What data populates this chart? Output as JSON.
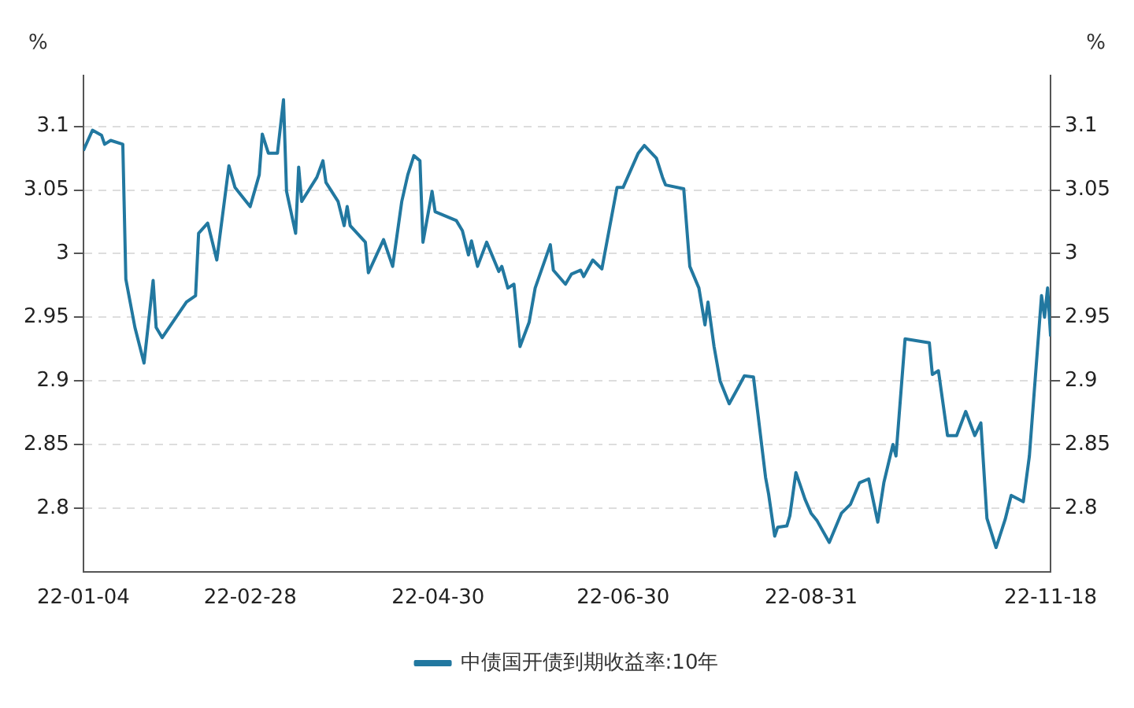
{
  "chart_data": {
    "type": "line",
    "ylabel": "%",
    "y2label": "%",
    "x": [
      "--01-04",
      "--01-07",
      "--01-10",
      "--01-11",
      "--01-13",
      "--01-17",
      "--01-18",
      "--01-21",
      "--01-24",
      "--01-27",
      "--01-28",
      "--01-30",
      "--02-07",
      "--02-10",
      "--02-11",
      "--02-14",
      "--02-17",
      "--02-21",
      "--02-23",
      "--02-28",
      "--03-02",
      "--03-03",
      "--03-05",
      "--03-08",
      "--03-10",
      "--03-11",
      "--03-14",
      "--03-15",
      "--03-16",
      "--03-21",
      "--03-23",
      "--03-24",
      "--03-28",
      "--03-30",
      "--03-31",
      "--04-01",
      "--04-06",
      "--04-07",
      "--04-12",
      "--04-15",
      "--04-18",
      "--04-20",
      "--04-22",
      "--04-24",
      "--04-25",
      "--04-28",
      "--04-29",
      "--05-06",
      "--05-08",
      "--05-10",
      "--05-11",
      "--05-13",
      "--05-16",
      "--05-20",
      "--05-21",
      "--05-23",
      "--05-25",
      "--05-27",
      "--05-30",
      "--06-01",
      "--06-06",
      "--06-07",
      "--06-11",
      "--06-13",
      "--06-16",
      "--06-17",
      "--06-20",
      "--06-23",
      "--06-28",
      "--06-30",
      "--07-05",
      "--07-07",
      "--07-11",
      "--07-13",
      "--07-14",
      "--07-20",
      "--07-22",
      "--07-25",
      "--07-27",
      "--07-28",
      "--07-30",
      "--08-01",
      "--08-04",
      "--08-07",
      "--08-09",
      "--08-12",
      "--08-16",
      "--08-17",
      "--08-19",
      "--08-20",
      "--08-23",
      "--08-24",
      "--08-26",
      "--08-29",
      "--08-31",
      "--09-02",
      "--09-06",
      "--09-10",
      "--09-13",
      "--09-16",
      "--09-19",
      "--09-22",
      "--09-24",
      "--09-27",
      "--09-28",
      "--10-01",
      "--10-09",
      "--10-10",
      "--10-12",
      "--10-13",
      "--10-15",
      "--10-18",
      "--10-21",
      "--10-24",
      "--10-26",
      "--10-28",
      "--10-31",
      "--11-03",
      "--11-05",
      "--11-09",
      "--11-11",
      "--11-15",
      "--11-16",
      "--11-17",
      "--11-18"
    ],
    "series": [
      {
        "name": "中债国开债到期收益率:10年",
        "color": "#2278a0",
        "values": [
          3.081,
          3.097,
          3.093,
          3.086,
          3.089,
          3.086,
          2.98,
          2.942,
          2.914,
          2.979,
          2.942,
          2.934,
          2.962,
          2.967,
          3.016,
          3.024,
          2.995,
          3.069,
          3.052,
          3.037,
          3.062,
          3.094,
          3.079,
          3.079,
          3.121,
          3.049,
          3.016,
          3.068,
          3.041,
          3.06,
          3.073,
          3.056,
          3.041,
          3.022,
          3.037,
          3.022,
          3.009,
          2.985,
          3.011,
          2.99,
          3.041,
          3.062,
          3.077,
          3.073,
          3.009,
          3.049,
          3.033,
          3.026,
          3.018,
          2.999,
          3.01,
          2.99,
          3.009,
          2.986,
          2.99,
          2.973,
          2.976,
          2.927,
          2.946,
          2.973,
          3.007,
          2.987,
          2.976,
          2.984,
          2.987,
          2.982,
          2.995,
          2.988,
          3.052,
          3.052,
          3.079,
          3.085,
          3.075,
          3.06,
          3.054,
          3.051,
          2.99,
          2.973,
          2.944,
          2.962,
          2.927,
          2.9,
          2.882,
          2.895,
          2.904,
          2.903,
          2.824,
          2.811,
          2.778,
          2.785,
          2.786,
          2.794,
          2.828,
          2.807,
          2.796,
          2.79,
          2.773,
          2.796,
          2.803,
          2.82,
          2.823,
          2.789,
          2.82,
          2.85,
          2.841,
          2.933,
          2.93,
          2.905,
          2.908,
          2.891,
          2.857,
          2.857,
          2.876,
          2.857,
          2.867,
          2.792,
          2.769,
          2.791,
          2.81,
          2.805,
          2.841,
          2.967,
          2.95,
          2.973,
          2.935
        ]
      }
    ],
    "xlim": [
      "--01-04",
      "--11-18"
    ],
    "xticks": [
      {
        "value": "--01-04",
        "label": "22-01-04"
      },
      {
        "value": "--02-28",
        "label": "22-02-28"
      },
      {
        "value": "--04-30",
        "label": "22-04-30"
      },
      {
        "value": "--06-30",
        "label": "22-06-30"
      },
      {
        "value": "--08-31",
        "label": "22-08-31"
      },
      {
        "value": "--11-18",
        "label": "22-11-18"
      }
    ],
    "ylim": [
      2.75,
      3.14
    ],
    "yticks": [
      2.8,
      2.85,
      2.9,
      2.95,
      3,
      3.05,
      3.1
    ],
    "y2lim": [
      2.75,
      3.14
    ],
    "y2ticks": [
      2.8,
      2.85,
      2.9,
      2.95,
      3,
      3.05,
      3.1
    ],
    "grid": "y",
    "legend": "bottom",
    "marker": "none",
    "line_style": "solid"
  }
}
